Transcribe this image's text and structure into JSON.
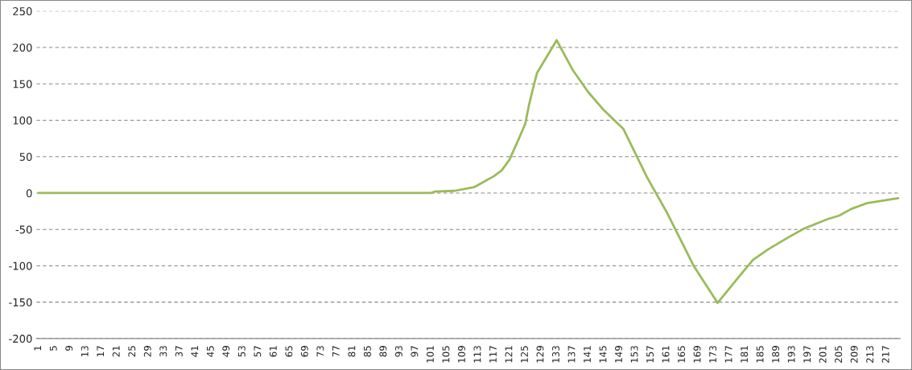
{
  "chart_data": {
    "type": "line",
    "series": [
      {
        "color": "#9bbb59",
        "x": [
          1,
          101,
          102,
          107,
          112,
          114,
          117,
          119,
          121,
          123,
          125,
          126,
          127,
          128,
          133,
          137,
          141,
          145,
          150,
          156,
          161,
          168,
          174,
          179,
          183,
          187,
          192,
          196,
          202,
          205,
          208,
          210,
          212,
          220
        ],
        "values": [
          0,
          0,
          2,
          3,
          8,
          14,
          23,
          31,
          46,
          70,
          95,
          122,
          144,
          165,
          210,
          170,
          139,
          114,
          88,
          22,
          -26,
          -101,
          -151,
          -118,
          -92,
          -77,
          -61,
          -49,
          -36,
          -31,
          -22,
          -18,
          -14,
          -7
        ]
      }
    ],
    "xlim": [
      0.5,
      220.5
    ],
    "xticks": [
      1,
      5,
      9,
      13,
      17,
      21,
      25,
      29,
      33,
      37,
      41,
      45,
      49,
      53,
      57,
      61,
      65,
      69,
      73,
      77,
      81,
      85,
      89,
      93,
      97,
      101,
      105,
      109,
      113,
      117,
      121,
      125,
      129,
      133,
      137,
      141,
      145,
      149,
      153,
      157,
      161,
      165,
      169,
      173,
      177,
      181,
      185,
      189,
      193,
      197,
      201,
      205,
      209,
      213,
      217
    ],
    "ylim": [
      -200,
      250
    ],
    "yticks": [
      -200,
      -150,
      -100,
      -50,
      0,
      50,
      100,
      150,
      200,
      250
    ],
    "grid": "y",
    "marker": "none",
    "line_style": "solid",
    "legend": false
  }
}
